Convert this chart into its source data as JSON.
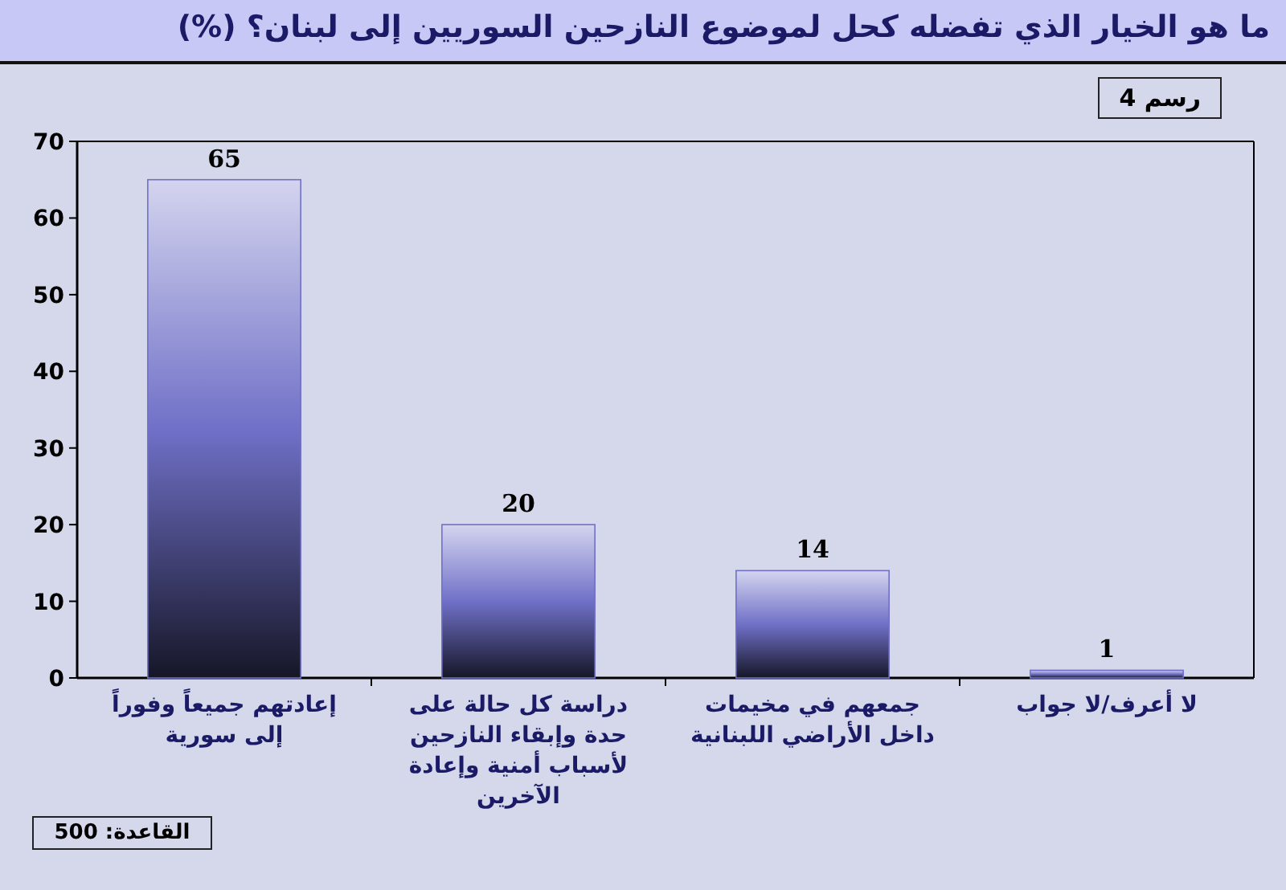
{
  "chart_data": {
    "type": "bar",
    "title": "ما هو الخيار الذي تفضله كحل لموضوع النازحين السوريين إلى لبنان؟ (%)",
    "categories": [
      "إعادتهم جميعاً وفوراً إلى سورية",
      "دراسة كل حالة على حدة وإبقاء النازحين لأسباب أمنية وإعادة الآخرين",
      "جمعهم في مخيمات داخل الأراضي اللبنانية",
      "لا أعرف/لا جواب"
    ],
    "values": [
      65,
      20,
      14,
      1
    ],
    "color": "#7070c8",
    "ylim": [
      0,
      70
    ],
    "yticks": [
      0,
      10,
      20,
      30,
      40,
      50,
      60,
      70
    ],
    "data_labels": true,
    "annotations": [
      "رسم 4",
      "القاعدة: 500"
    ]
  }
}
